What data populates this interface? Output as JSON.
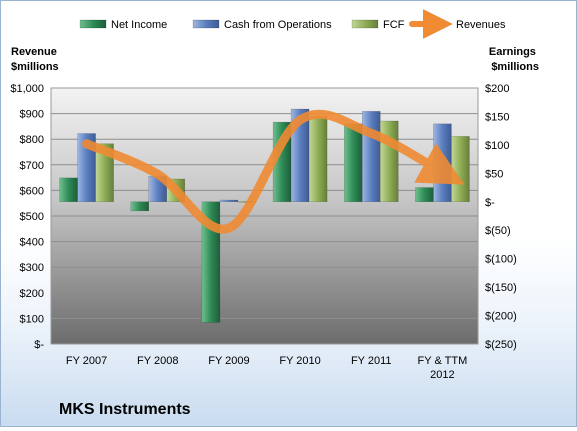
{
  "chart_data": {
    "type": "bar",
    "title": "MKS Instruments",
    "left_axis_label": [
      "Revenue",
      "$millions"
    ],
    "right_axis_label": [
      "Earnings",
      "$millions"
    ],
    "categories": [
      [
        "FY 2007"
      ],
      [
        "FY 2008"
      ],
      [
        "FY 2009"
      ],
      [
        "FY 2010"
      ],
      [
        "FY 2011"
      ],
      [
        "FY & TTM",
        "2012"
      ]
    ],
    "left_axis": {
      "range": [
        0,
        1000
      ],
      "ticks": [
        1000,
        900,
        800,
        700,
        600,
        500,
        400,
        300,
        200,
        100,
        0
      ],
      "tick_labels": [
        "$1,000",
        "$900",
        "$800",
        "$700",
        "$600",
        "$500",
        "$400",
        "$300",
        "$200",
        "$100",
        "$-"
      ]
    },
    "right_axis": {
      "range": [
        -250,
        200
      ],
      "ticks": [
        200,
        150,
        100,
        50,
        0,
        -50,
        -100,
        -150,
        -200,
        -250
      ],
      "tick_labels": [
        "$200",
        "$150",
        "$100",
        "$50",
        "$-",
        "$(50)",
        "$(100)",
        "$(150)",
        "$(200)",
        "$(250)"
      ]
    },
    "series": [
      {
        "name": "Net Income",
        "type": "bar",
        "axis": "right",
        "color": "#2e8b57",
        "values": [
          42,
          -16,
          -212,
          140,
          137,
          25
        ]
      },
      {
        "name": "Cash from Operations",
        "type": "bar",
        "axis": "right",
        "color": "#5b7fc0",
        "values": [
          120,
          45,
          3,
          163,
          159,
          137
        ]
      },
      {
        "name": "FCF",
        "type": "bar",
        "axis": "right",
        "color": "#8fae56",
        "values": [
          102,
          40,
          0,
          150,
          142,
          115
        ]
      },
      {
        "name": "Revenues",
        "type": "line",
        "axis": "left",
        "color": "#f08a33",
        "values": [
          782,
          663,
          453,
          875,
          823,
          670
        ]
      }
    ],
    "legend_position": "top",
    "grid": true
  }
}
